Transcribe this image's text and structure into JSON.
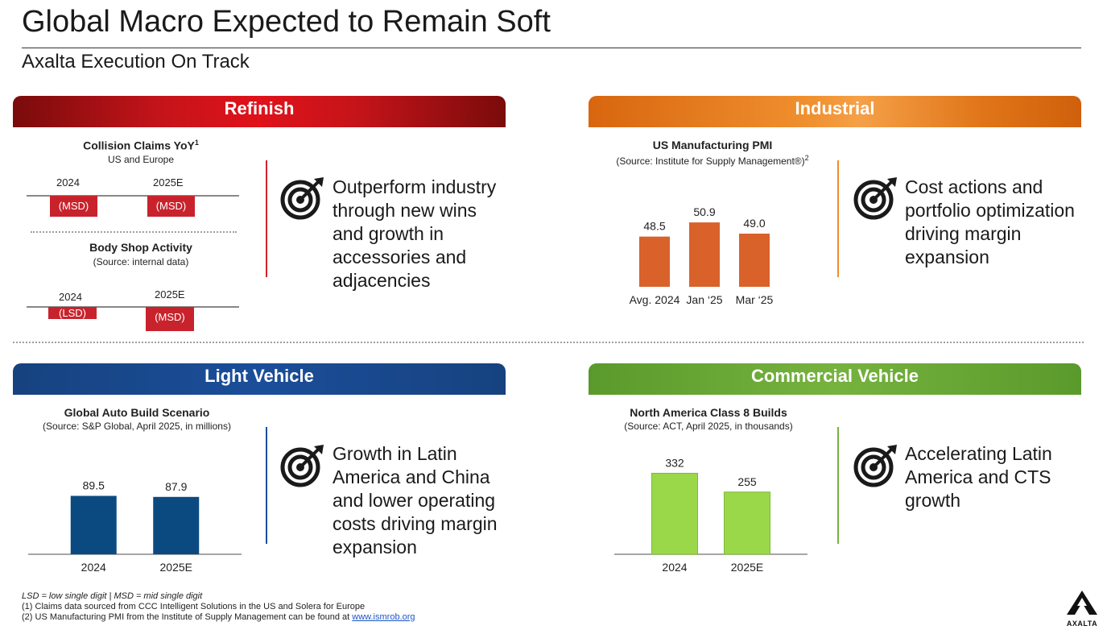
{
  "header": {
    "title": "Global Macro Expected to Remain Soft",
    "subtitle": "Axalta Execution On Track"
  },
  "refinish": {
    "banner": "Refinish",
    "collision": {
      "title": "Collision Claims YoY",
      "title_sup": "1",
      "sub": "US and Europe",
      "col1": "2024",
      "col2": "2025E",
      "val1": "(MSD)",
      "val2": "(MSD)"
    },
    "bodyshop": {
      "title": "Body Shop Activity",
      "sub": "(Source: internal data)",
      "col1": "2024",
      "col2": "2025E",
      "val1": "(LSD)",
      "val2": "(MSD)"
    },
    "bullet": "Outperform industry through new wins and growth in accessories and adjacencies",
    "icon": "target-icon"
  },
  "industrial": {
    "banner": "Industrial",
    "chart_title": "US Manufacturing PMI",
    "chart_sub": "(Source: Institute for Supply Management®)",
    "chart_sub_sup": "2",
    "bullet": "Cost actions and portfolio optimization driving margin expansion",
    "icon": "target-icon"
  },
  "light_vehicle": {
    "banner": "Light Vehicle",
    "chart_title": "Global Auto Build Scenario",
    "chart_sub": "(Source: S&P Global, April 2025, in millions)",
    "bullet": "Growth in Latin America and China and lower operating costs driving margin expansion",
    "icon": "target-icon"
  },
  "commercial_vehicle": {
    "banner": "Commercial Vehicle",
    "chart_title": "North America Class 8 Builds",
    "chart_sub": "(Source: ACT, April 2025, in thousands)",
    "bullet": "Accelerating Latin America and CTS growth",
    "icon": "target-icon"
  },
  "chart_data": [
    {
      "id": "pmi",
      "type": "bar",
      "categories": [
        "Avg. 2024",
        "Jan ‘25",
        "Mar ‘25"
      ],
      "values": [
        48.5,
        50.9,
        49.0
      ],
      "labels": [
        "48.5",
        "50.9",
        "49.0"
      ],
      "title": "US Manufacturing PMI",
      "color": "#d9622a",
      "ylim": [
        40,
        52
      ]
    },
    {
      "id": "auto",
      "type": "bar",
      "categories": [
        "2024",
        "2025E"
      ],
      "values": [
        89.5,
        87.9
      ],
      "labels": [
        "89.5",
        "87.9"
      ],
      "title": "Global Auto Build Scenario",
      "color": "#0b4a80",
      "ylim": [
        0,
        100
      ]
    },
    {
      "id": "class8",
      "type": "bar",
      "categories": [
        "2024",
        "2025E"
      ],
      "values": [
        332,
        255
      ],
      "labels": [
        "332",
        "255"
      ],
      "title": "North America Class 8 Builds",
      "color": "#9ad84a",
      "ylim": [
        0,
        350
      ]
    }
  ],
  "footnotes": {
    "legend": "LSD = low single digit | MSD = mid single digit",
    "note1": "(1) Claims data sourced from CCC Intelligent Solutions in the US and Solera for Europe",
    "note2_prefix": "(2) US Manufacturing PMI from the Institute of Supply Management can be found at ",
    "note2_link": "www.ismrob.org"
  },
  "logo": {
    "text": "AXALTA",
    "icon": "axalta-logo"
  }
}
